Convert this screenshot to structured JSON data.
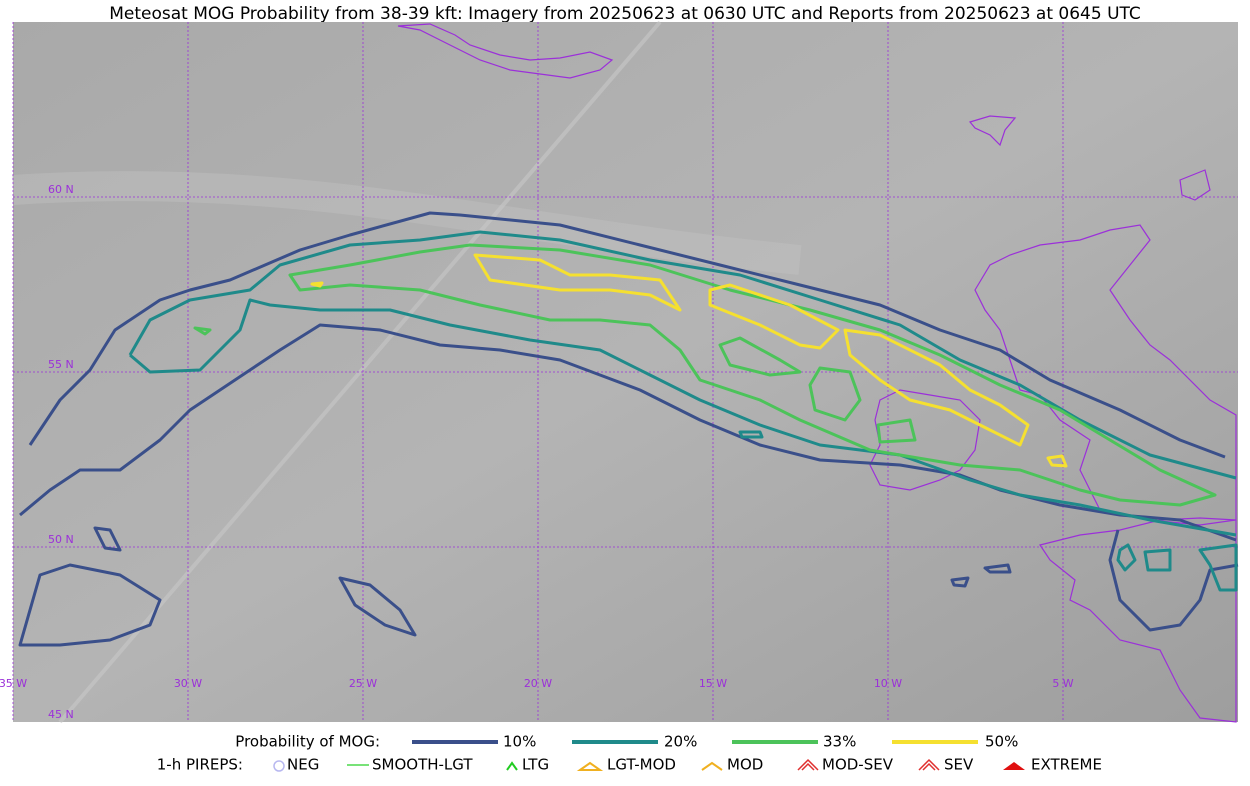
{
  "title": "Meteosat MOG Probability from 38-39 kft: Imagery from 20250623 at 0630 UTC and Reports from 20250623 at 0645 UTC",
  "map": {
    "lat_labels": [
      "60 N",
      "55 N",
      "50 N",
      "45 N"
    ],
    "lon_labels": [
      "35 W",
      "30 W",
      "25 W",
      "20 W",
      "15 W",
      "10 W",
      "5 W"
    ]
  },
  "legend": {
    "probability": {
      "label": "Probability of MOG:",
      "items": [
        "10%",
        "20%",
        "33%",
        "50%"
      ]
    },
    "pireps": {
      "label": "1-h PIREPS:",
      "items": [
        "NEG",
        "SMOOTH-LGT",
        "LTG",
        "LGT-MOD",
        "MOD",
        "MOD-SEV",
        "SEV",
        "EXTREME"
      ]
    }
  }
}
